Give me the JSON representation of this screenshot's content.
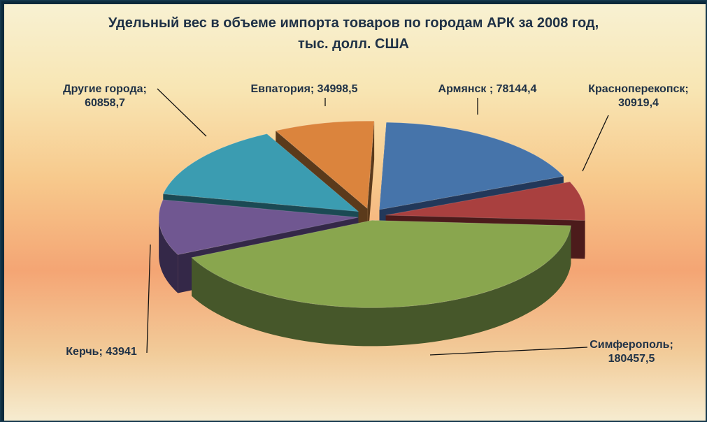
{
  "chart_data": {
    "type": "pie",
    "title_line1": "Удельный вес в объеме импорта товаров по городам АРК за 2008 год,",
    "title_line2": "тыс. долл. США",
    "slices": [
      {
        "name": "Армянск",
        "value": 78144.4,
        "label_lines": [
          "Армянск ; 78144,4"
        ],
        "color": "#4674aa",
        "side": "#22385a"
      },
      {
        "name": "Красноперекопск",
        "value": 30919.4,
        "label_lines": [
          "Красноперекопск;",
          "30919,4"
        ],
        "color": "#a9403f",
        "side": "#4c1b1b"
      },
      {
        "name": "Симферополь",
        "value": 180457.5,
        "label_lines": [
          "Симферополь;",
          "180457,5"
        ],
        "color": "#89a64e",
        "side": "#46572a"
      },
      {
        "name": "Керчь",
        "value": 43941,
        "label_lines": [
          "Керчь; 43941"
        ],
        "color": "#705791",
        "side": "#342848"
      },
      {
        "name": "Другие города",
        "value": 60858.7,
        "label_lines": [
          "Другие города;",
          "60858,7"
        ],
        "color": "#3b9cb1",
        "side": "#1b4a54"
      },
      {
        "name": "Евпатория",
        "value": 34998.5,
        "label_lines": [
          "Евпатория; 34998,5"
        ],
        "color": "#db843d",
        "side": "#5b3a1b"
      }
    ]
  }
}
